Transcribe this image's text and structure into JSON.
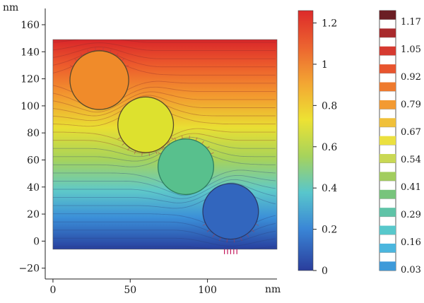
{
  "chart_data": [
    {
      "type": "heatmap",
      "x_unit": "nm",
      "y_unit": "nm",
      "x_ticks": [
        "0",
        "50",
        "100"
      ],
      "x_tick_values": [
        0,
        50,
        100
      ],
      "y_ticks": [
        "160",
        "140",
        "120",
        "100",
        "80",
        "60",
        "40",
        "20",
        "0",
        "−20"
      ],
      "y_tick_values": [
        160,
        140,
        120,
        100,
        80,
        60,
        40,
        20,
        0,
        -20
      ],
      "xlim": [
        -5,
        145
      ],
      "ylim": [
        -28,
        172
      ],
      "domain_x": [
        0,
        145
      ],
      "domain_y": [
        -6,
        149
      ],
      "field_range": [
        0,
        1.3
      ],
      "circles": [
        {
          "cx": 30,
          "cy": 119,
          "r": 19,
          "value": 1.06,
          "color": "#f08b2a"
        },
        {
          "cx": 60,
          "cy": 86,
          "r": 18,
          "value": 0.85,
          "color": "#dde12e"
        },
        {
          "cx": 86,
          "cy": 55,
          "r": 18,
          "value": 0.55,
          "color": "#58c08d"
        },
        {
          "cx": 115,
          "cy": 22,
          "r": 18,
          "value": 0.18,
          "color": "#3266be"
        }
      ],
      "colorbar": {
        "ticks": [
          "1.2",
          "1",
          "0.8",
          "0.6",
          "0.4",
          "0.2",
          "0"
        ],
        "tick_values": [
          1.2,
          1.0,
          0.8,
          0.6,
          0.4,
          0.2,
          0
        ],
        "range": [
          0,
          1.26
        ]
      },
      "contour_legend": {
        "labels": [
          "1.17",
          "1.05",
          "0.92",
          "0.79",
          "0.67",
          "0.54",
          "0.41",
          "0.29",
          "0.16",
          "0.03"
        ],
        "levels": [
          1.17,
          1.05,
          0.92,
          0.79,
          0.67,
          0.54,
          0.41,
          0.29,
          0.16,
          0.03
        ]
      }
    }
  ]
}
